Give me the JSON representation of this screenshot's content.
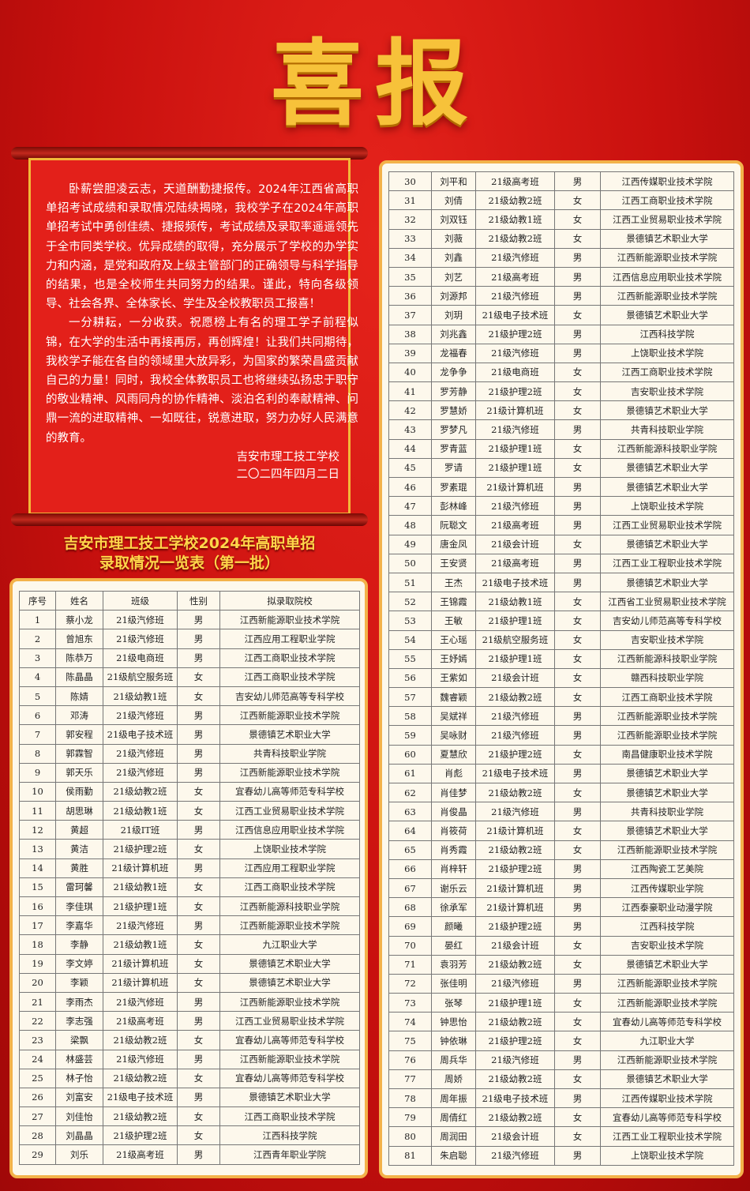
{
  "header": {
    "title": "喜报"
  },
  "letter": {
    "paragraphs": [
      "卧薪尝胆凌云志，天道酬勤捷报传。2024年江西省高职单招考试成绩和录取情况陆续揭晓，我校学子在2024年高职单招考试中勇创佳绩、捷报频传，考试成绩及录取率遥遥领先于全市同类学校。优异成绩的取得，充分展示了学校的办学实力和内涵，是党和政府及上级主管部门的正确领导与科学指导的结果，也是全校师生共同努力的结果。谨此，特向各级领导、社会各界、全体家长、学生及全校教职员工报喜！",
      "一分耕耘，一分收获。祝愿榜上有名的理工学子前程似锦，在大学的生活中再接再厉，再创辉煌！让我们共同期待，我校学子能在各自的领域里大放异彩，为国家的繁荣昌盛贡献自己的力量！同时，我校全体教职员工也将继续弘扬忠于职守的敬业精神、风雨同舟的协作精神、淡泊名利的奉献精神、问鼎一流的进取精神、一如既往，锐意进取，努力办好人民满意的教育。"
    ],
    "signature": "吉安市理工技工学校",
    "date": "二〇二四年四月二日"
  },
  "subtitle": [
    "吉安市理工技工学校2024年高职单招",
    "录取情况一览表（第一批）"
  ],
  "table": {
    "header": [
      "序号",
      "姓名",
      "班级",
      "性别",
      "拟录取院校"
    ],
    "rows": [
      [
        1,
        "蔡小龙",
        "21级汽修班",
        "男",
        "江西新能源职业技术学院"
      ],
      [
        2,
        "曾旭东",
        "21级汽修班",
        "男",
        "江西应用工程职业学院"
      ],
      [
        3,
        "陈恭万",
        "21级电商班",
        "男",
        "江西工商职业技术学院"
      ],
      [
        4,
        "陈晶晶",
        "21级航空服务班",
        "女",
        "江西工商职业技术学院"
      ],
      [
        5,
        "陈婧",
        "21级幼教1班",
        "女",
        "吉安幼儿师范高等专科学校"
      ],
      [
        6,
        "邓涛",
        "21级汽修班",
        "男",
        "江西新能源职业技术学院"
      ],
      [
        7,
        "郭安程",
        "21级电子技术班",
        "男",
        "景德镇艺术职业大学"
      ],
      [
        8,
        "郭霖智",
        "21级汽修班",
        "男",
        "共青科技职业学院"
      ],
      [
        9,
        "郭天乐",
        "21级汽修班",
        "男",
        "江西新能源职业技术学院"
      ],
      [
        10,
        "侯雨勤",
        "21级幼教2班",
        "女",
        "宜春幼儿高等师范专科学校"
      ],
      [
        11,
        "胡思琳",
        "21级幼教1班",
        "女",
        "江西工业贸易职业技术学院"
      ],
      [
        12,
        "黄超",
        "21级IT班",
        "男",
        "江西信息应用职业技术学院"
      ],
      [
        13,
        "黄洁",
        "21级护理2班",
        "女",
        "上饶职业技术学院"
      ],
      [
        14,
        "黄胜",
        "21级计算机班",
        "男",
        "江西应用工程职业学院"
      ],
      [
        15,
        "雷珂馨",
        "21级幼教1班",
        "女",
        "江西工商职业技术学院"
      ],
      [
        16,
        "李佳琪",
        "21级护理1班",
        "女",
        "江西新能源科技职业学院"
      ],
      [
        17,
        "李嘉华",
        "21级汽修班",
        "男",
        "江西新能源职业技术学院"
      ],
      [
        18,
        "李静",
        "21级幼教1班",
        "女",
        "九江职业大学"
      ],
      [
        19,
        "李文婷",
        "21级计算机班",
        "女",
        "景德镇艺术职业大学"
      ],
      [
        20,
        "李颖",
        "21级计算机班",
        "女",
        "景德镇艺术职业大学"
      ],
      [
        21,
        "李雨杰",
        "21级汽修班",
        "男",
        "江西新能源职业技术学院"
      ],
      [
        22,
        "李志强",
        "21级高考班",
        "男",
        "江西工业贸易职业技术学院"
      ],
      [
        23,
        "梁飘",
        "21级幼教2班",
        "女",
        "宜春幼儿高等师范专科学校"
      ],
      [
        24,
        "林盛芸",
        "21级汽修班",
        "男",
        "江西新能源职业技术学院"
      ],
      [
        25,
        "林子怡",
        "21级幼教2班",
        "女",
        "宜春幼儿高等师范专科学校"
      ],
      [
        26,
        "刘富安",
        "21级电子技术班",
        "男",
        "景德镇艺术职业大学"
      ],
      [
        27,
        "刘佳怡",
        "21级幼教2班",
        "女",
        "江西工商职业技术学院"
      ],
      [
        28,
        "刘晶晶",
        "21级护理2班",
        "女",
        "江西科技学院"
      ],
      [
        29,
        "刘乐",
        "21级高考班",
        "男",
        "江西青年职业学院"
      ],
      [
        30,
        "刘平和",
        "21级高考班",
        "男",
        "江西传媒职业技术学院"
      ],
      [
        31,
        "刘倩",
        "21级幼教2班",
        "女",
        "江西工商职业技术学院"
      ],
      [
        32,
        "刘双钰",
        "21级幼教1班",
        "女",
        "江西工业贸易职业技术学院"
      ],
      [
        33,
        "刘薇",
        "21级幼教2班",
        "女",
        "景德镇艺术职业大学"
      ],
      [
        34,
        "刘鑫",
        "21级汽修班",
        "男",
        "江西新能源职业技术学院"
      ],
      [
        35,
        "刘艺",
        "21级高考班",
        "男",
        "江西信息应用职业技术学院"
      ],
      [
        36,
        "刘源邦",
        "21级汽修班",
        "男",
        "江西新能源职业技术学院"
      ],
      [
        37,
        "刘玥",
        "21级电子技术班",
        "女",
        "景德镇艺术职业大学"
      ],
      [
        38,
        "刘兆鑫",
        "21级护理2班",
        "男",
        "江西科技学院"
      ],
      [
        39,
        "龙福春",
        "21级汽修班",
        "男",
        "上饶职业技术学院"
      ],
      [
        40,
        "龙争争",
        "21级电商班",
        "女",
        "江西工商职业技术学院"
      ],
      [
        41,
        "罗芳静",
        "21级护理2班",
        "女",
        "吉安职业技术学院"
      ],
      [
        42,
        "罗慧娇",
        "21级计算机班",
        "女",
        "景德镇艺术职业大学"
      ],
      [
        43,
        "罗梦凡",
        "21级汽修班",
        "男",
        "共青科技职业学院"
      ],
      [
        44,
        "罗青蓝",
        "21级护理1班",
        "女",
        "江西新能源科技职业学院"
      ],
      [
        45,
        "罗请",
        "21级护理1班",
        "女",
        "景德镇艺术职业大学"
      ],
      [
        46,
        "罗素琨",
        "21级计算机班",
        "男",
        "景德镇艺术职业大学"
      ],
      [
        47,
        "彭林峰",
        "21级汽修班",
        "男",
        "上饶职业技术学院"
      ],
      [
        48,
        "阮聪文",
        "21级高考班",
        "男",
        "江西工业贸易职业技术学院"
      ],
      [
        49,
        "唐金凤",
        "21级会计班",
        "女",
        "景德镇艺术职业大学"
      ],
      [
        50,
        "王安贤",
        "21级高考班",
        "男",
        "江西工业工程职业技术学院"
      ],
      [
        51,
        "王杰",
        "21级电子技术班",
        "男",
        "景德镇艺术职业大学"
      ],
      [
        52,
        "王锦霞",
        "21级幼教1班",
        "女",
        "江西省工业贸易职业技术学院"
      ],
      [
        53,
        "王敏",
        "21级护理1班",
        "女",
        "吉安幼儿师范高等专科学校"
      ],
      [
        54,
        "王心瑶",
        "21级航空服务班",
        "女",
        "吉安职业技术学院"
      ],
      [
        55,
        "王妤嫣",
        "21级护理1班",
        "女",
        "江西新能源科技职业学院"
      ],
      [
        56,
        "王紫如",
        "21级会计班",
        "女",
        "赣西科技职业学院"
      ],
      [
        57,
        "魏睿颖",
        "21级幼教2班",
        "女",
        "江西工商职业技术学院"
      ],
      [
        58,
        "吴斌祥",
        "21级汽修班",
        "男",
        "江西新能源职业技术学院"
      ],
      [
        59,
        "吴咏财",
        "21级汽修班",
        "男",
        "江西新能源职业技术学院"
      ],
      [
        60,
        "夏慧欣",
        "21级护理2班",
        "女",
        "南昌健康职业技术学院"
      ],
      [
        61,
        "肖彪",
        "21级电子技术班",
        "男",
        "景德镇艺术职业大学"
      ],
      [
        62,
        "肖佳梦",
        "21级幼教2班",
        "女",
        "景德镇艺术职业大学"
      ],
      [
        63,
        "肖俊晶",
        "21级汽修班",
        "男",
        "共青科技职业学院"
      ],
      [
        64,
        "肖筱荷",
        "21级计算机班",
        "女",
        "景德镇艺术职业大学"
      ],
      [
        65,
        "肖秀霞",
        "21级幼教2班",
        "女",
        "江西新能源职业技术学院"
      ],
      [
        66,
        "肖梓轩",
        "21级护理2班",
        "男",
        "江西陶瓷工艺美院"
      ],
      [
        67,
        "谢乐云",
        "21级计算机班",
        "男",
        "江西传媒职业学院"
      ],
      [
        68,
        "徐承军",
        "21级计算机班",
        "男",
        "江西泰豪职业动漫学院"
      ],
      [
        69,
        "颜曦",
        "21级护理2班",
        "男",
        "江西科技学院"
      ],
      [
        70,
        "晏红",
        "21级会计班",
        "女",
        "吉安职业技术学院"
      ],
      [
        71,
        "袁羽芳",
        "21级幼教2班",
        "女",
        "景德镇艺术职业大学"
      ],
      [
        72,
        "张佳明",
        "21级汽修班",
        "男",
        "江西新能源职业技术学院"
      ],
      [
        73,
        "张琴",
        "21级护理1班",
        "女",
        "江西新能源职业技术学院"
      ],
      [
        74,
        "钟思怡",
        "21级幼教2班",
        "女",
        "宜春幼儿高等师范专科学校"
      ],
      [
        75,
        "钟依琳",
        "21级护理2班",
        "女",
        "九江职业大学"
      ],
      [
        76,
        "周兵华",
        "21级汽修班",
        "男",
        "江西新能源职业技术学院"
      ],
      [
        77,
        "周娇",
        "21级幼教2班",
        "女",
        "景德镇艺术职业大学"
      ],
      [
        78,
        "周年振",
        "21级电子技术班",
        "男",
        "江西传媒职业技术学院"
      ],
      [
        79,
        "周倩红",
        "21级幼教2班",
        "女",
        "宜春幼儿高等师范专科学校"
      ],
      [
        80,
        "周润田",
        "21级会计班",
        "女",
        "江西工业工程职业技术学院"
      ],
      [
        81,
        "朱启聪",
        "21级汽修班",
        "男",
        "上饶职业技术学院"
      ]
    ]
  }
}
